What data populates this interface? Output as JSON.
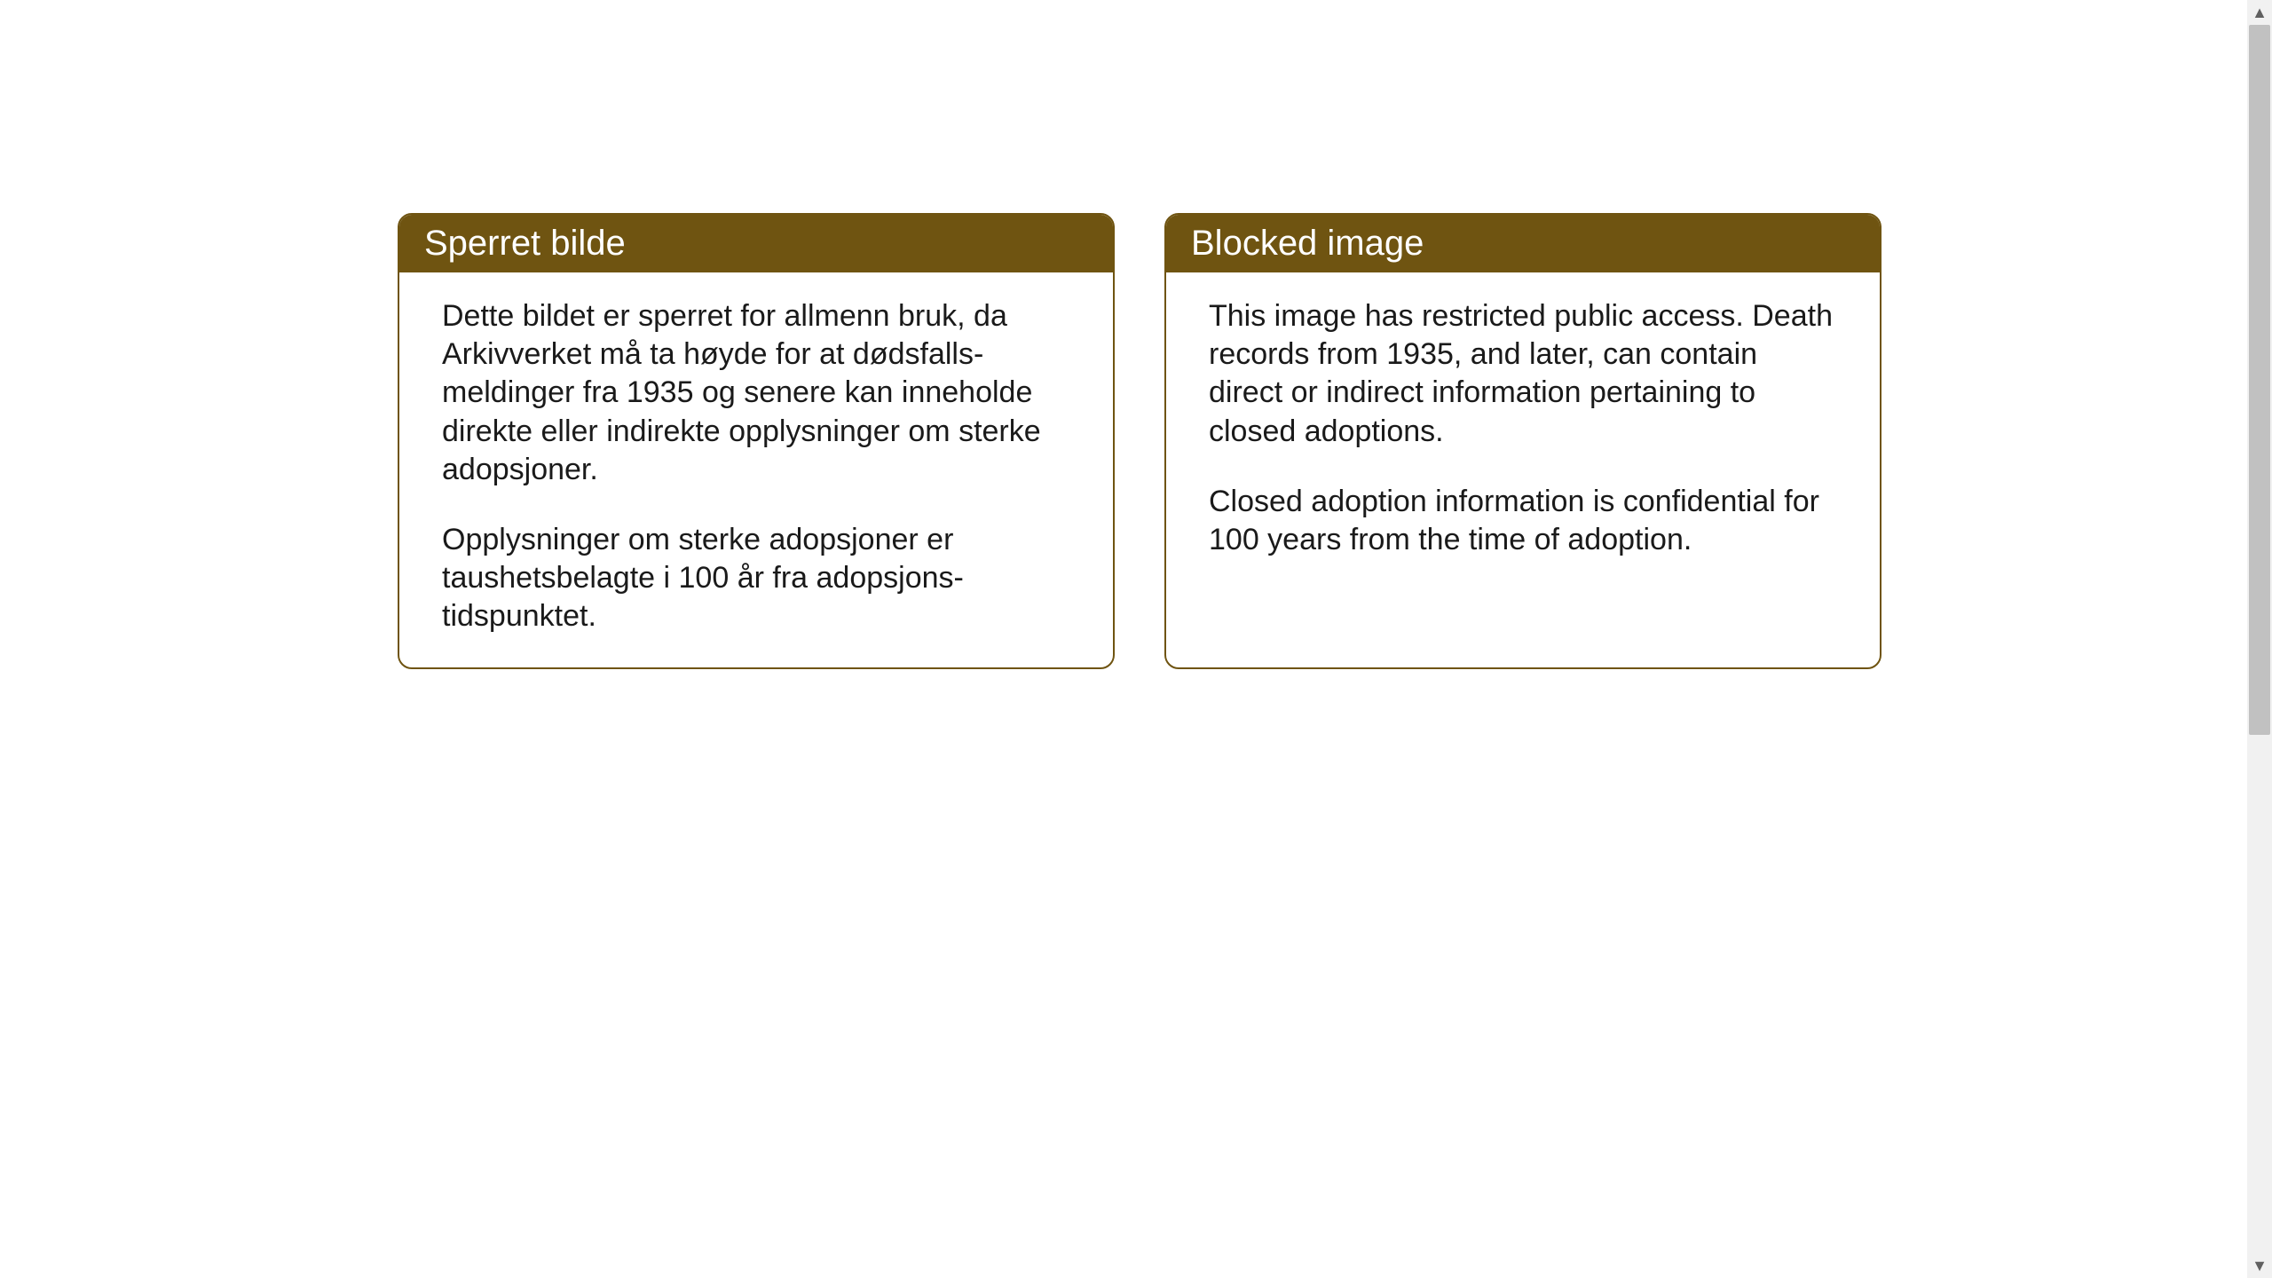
{
  "layout": {
    "background_color": "#ffffff",
    "card_border_color": "#6f5411",
    "card_border_width": 2,
    "card_border_radius": 16,
    "header_bg_color": "#6f5411",
    "header_text_color": "#ffffff",
    "body_text_color": "#1a1a1a",
    "header_fontsize": 40,
    "body_fontsize": 34
  },
  "cards": {
    "norwegian": {
      "title": "Sperret bilde",
      "paragraph1": "Dette bildet er sperret for allmenn bruk, da Arkivverket må ta høyde for at dødsfalls-meldinger fra 1935 og senere kan inneholde direkte eller indirekte opplysninger om sterke adopsjoner.",
      "paragraph2": "Opplysninger om sterke adopsjoner er taushetsbelagte i 100 år fra adopsjons-tidspunktet."
    },
    "english": {
      "title": "Blocked image",
      "paragraph1": "This image has restricted public access. Death records from 1935, and later, can contain direct or indirect information pertaining to closed adoptions.",
      "paragraph2": "Closed adoption information is confidential for 100 years from the time of adoption."
    }
  },
  "scrollbar": {
    "track_color": "#f1f1f1",
    "thumb_color": "#c1c1c1",
    "arrow_color": "#606060"
  }
}
